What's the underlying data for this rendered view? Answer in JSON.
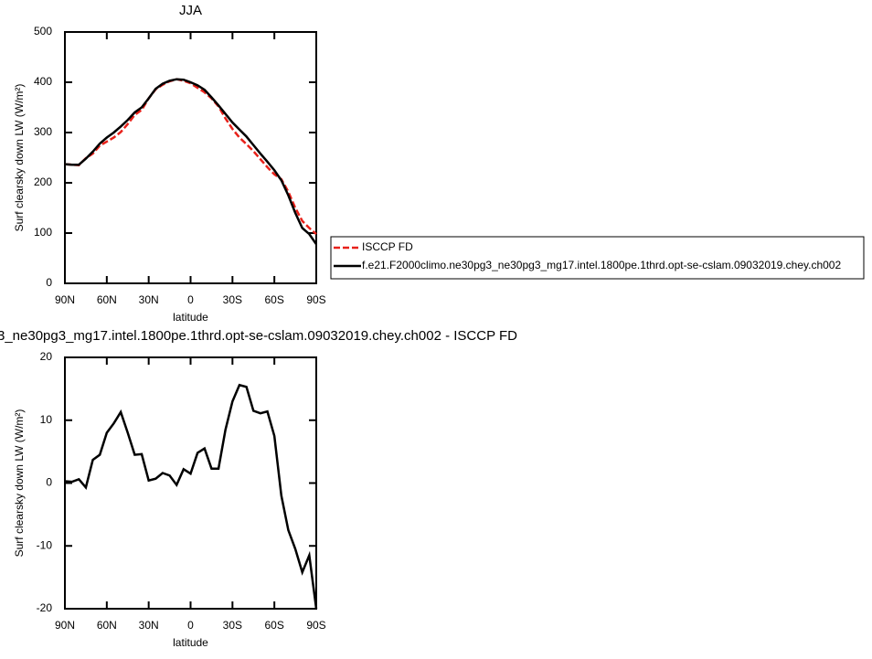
{
  "chart_data": [
    {
      "type": "line",
      "title": "JJA",
      "xlabel": "latitude",
      "ylabel": "Surf clearsky down LW (W/m²)",
      "x": [
        90,
        85,
        80,
        75,
        70,
        65,
        60,
        55,
        50,
        45,
        40,
        35,
        30,
        25,
        20,
        15,
        10,
        5,
        0,
        -5,
        -10,
        -15,
        -20,
        -25,
        -30,
        -35,
        -40,
        -45,
        -50,
        -55,
        -60,
        -65,
        -70,
        -75,
        -80,
        -85,
        -90
      ],
      "series": [
        {
          "name": "ISCCP FD",
          "color": "#e8211a",
          "dashed": true,
          "values": [
            237,
            236,
            235,
            249,
            258,
            274,
            282,
            290,
            301,
            317,
            335,
            345,
            368,
            386,
            395,
            402,
            406,
            403,
            398,
            389,
            380,
            368,
            352,
            328,
            307,
            290,
            277,
            263,
            247,
            231,
            217,
            207,
            182,
            150,
            124,
            110,
            98
          ]
        },
        {
          "name": "f.e21.F2000climo.ne30pg3_ne30pg3_mg17.intel.1800pe.1thrd.opt-se-cslam.09032019.chey.ch002",
          "color": "#000000",
          "dashed": false,
          "values": [
            237,
            236,
            236,
            248,
            262,
            278,
            290,
            300,
            312,
            325,
            340,
            350,
            368,
            387,
            397,
            403,
            406,
            405,
            400,
            394,
            385,
            370,
            354,
            337,
            320,
            306,
            292,
            275,
            258,
            242,
            225,
            205,
            175,
            140,
            110,
            98,
            78
          ]
        }
      ],
      "xlim": [
        90,
        -90
      ],
      "xticks": [
        {
          "value": 90,
          "label": "90N"
        },
        {
          "value": 60,
          "label": "60N"
        },
        {
          "value": 30,
          "label": "30N"
        },
        0,
        {
          "value": -30,
          "label": "30S"
        },
        {
          "value": -60,
          "label": "60S"
        },
        {
          "value": -90,
          "label": "90S"
        }
      ],
      "ylim": [
        0,
        500
      ],
      "yticks": [
        0,
        100,
        200,
        300,
        400,
        500
      ],
      "grid": false,
      "legend": "right"
    },
    {
      "type": "line",
      "title": "3_ne30pg3_mg17.intel.1800pe.1thrd.opt-se-cslam.09032019.chey.ch002 - ISCCP FD",
      "xlabel": "latitude",
      "ylabel": "Surf clearsky down LW (W/m²)",
      "x": [
        90,
        85,
        80,
        75,
        70,
        65,
        60,
        55,
        50,
        45,
        40,
        35,
        30,
        25,
        20,
        15,
        10,
        5,
        0,
        -5,
        -10,
        -15,
        -20,
        -25,
        -30,
        -35,
        -40,
        -45,
        -50,
        -55,
        -60,
        -65,
        -70,
        -75,
        -80,
        -85,
        -90
      ],
      "color": "#000000",
      "values": [
        0.3,
        0.2,
        0.6,
        -0.7,
        3.7,
        4.5,
        8.0,
        9.5,
        11.3,
        8.0,
        4.5,
        4.6,
        0.4,
        0.7,
        1.6,
        1.2,
        -0.3,
        2.2,
        1.5,
        4.8,
        5.5,
        2.3,
        2.3,
        8.5,
        13,
        15.6,
        15.3,
        11.5,
        11.1,
        11.4,
        7.5,
        -2,
        -7.5,
        -10.5,
        -14.2,
        -11.5,
        -20
      ],
      "xlim": [
        90,
        -90
      ],
      "xticks": [
        {
          "value": 90,
          "label": "90N"
        },
        {
          "value": 60,
          "label": "60N"
        },
        {
          "value": 30,
          "label": "30N"
        },
        0,
        {
          "value": -30,
          "label": "30S"
        },
        {
          "value": -60,
          "label": "60S"
        },
        {
          "value": -90,
          "label": "90S"
        }
      ],
      "ylim": [
        -20,
        20
      ],
      "yticks": [
        -20,
        -10,
        0,
        10,
        20
      ],
      "grid": false
    }
  ]
}
